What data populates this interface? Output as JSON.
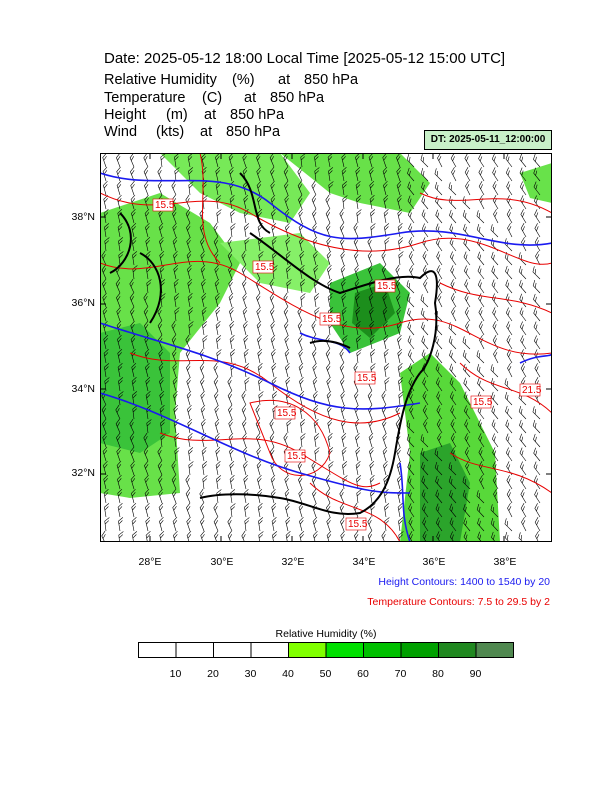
{
  "title": "Date: 2025-05-12  18:00 Local Time [2025-05-12  15:00 UTC]",
  "variables": [
    {
      "name": "Relative Humidity",
      "unit": "(%)",
      "at": "at",
      "level": "850 hPa"
    },
    {
      "name": "Temperature",
      "unit": "(C)",
      "at": "at",
      "level": "850 hPa"
    },
    {
      "name": "Height",
      "unit": "(m)",
      "at": "at",
      "level": "850 hPa"
    },
    {
      "name": "Wind",
      "unit": "(kts)",
      "at": "at",
      "level": "850 hPa"
    }
  ],
  "dt_label": "DT: 2025-05-11_12:00:00",
  "map": {
    "lat_labels": [
      "38°N",
      "36°N",
      "34°N",
      "32°N"
    ],
    "lon_labels": [
      "28°E",
      "30°E",
      "32°E",
      "34°E",
      "36°E",
      "38°E"
    ],
    "lon_range": [
      26.7,
      39.4
    ],
    "lat_range": [
      30.6,
      39.5
    ],
    "temperature_labels": [
      "15.5",
      "15.5",
      "15.5",
      "15.5",
      "15.5",
      "15.5",
      "15.5",
      "15.5",
      "21.5",
      "15.5"
    ],
    "colors": {
      "height": "#1a1af0",
      "temperature": "#e80000",
      "coast": "#000000"
    }
  },
  "height_contours": "Height Contours: 1400 to 1540 by 20",
  "temperature_contours": "Temperature Contours: 7.5 to 29.5 by 2",
  "legend": {
    "title": "Relative Humidity  (%)",
    "ticks": [
      "10",
      "20",
      "30",
      "40",
      "50",
      "60",
      "70",
      "80",
      "90"
    ],
    "colors": [
      "#ffffff",
      "#ffffff",
      "#ffffff",
      "#ffffff",
      "#80ff00",
      "#00e000",
      "#00c000",
      "#00a000",
      "#208820",
      "#508850"
    ]
  }
}
